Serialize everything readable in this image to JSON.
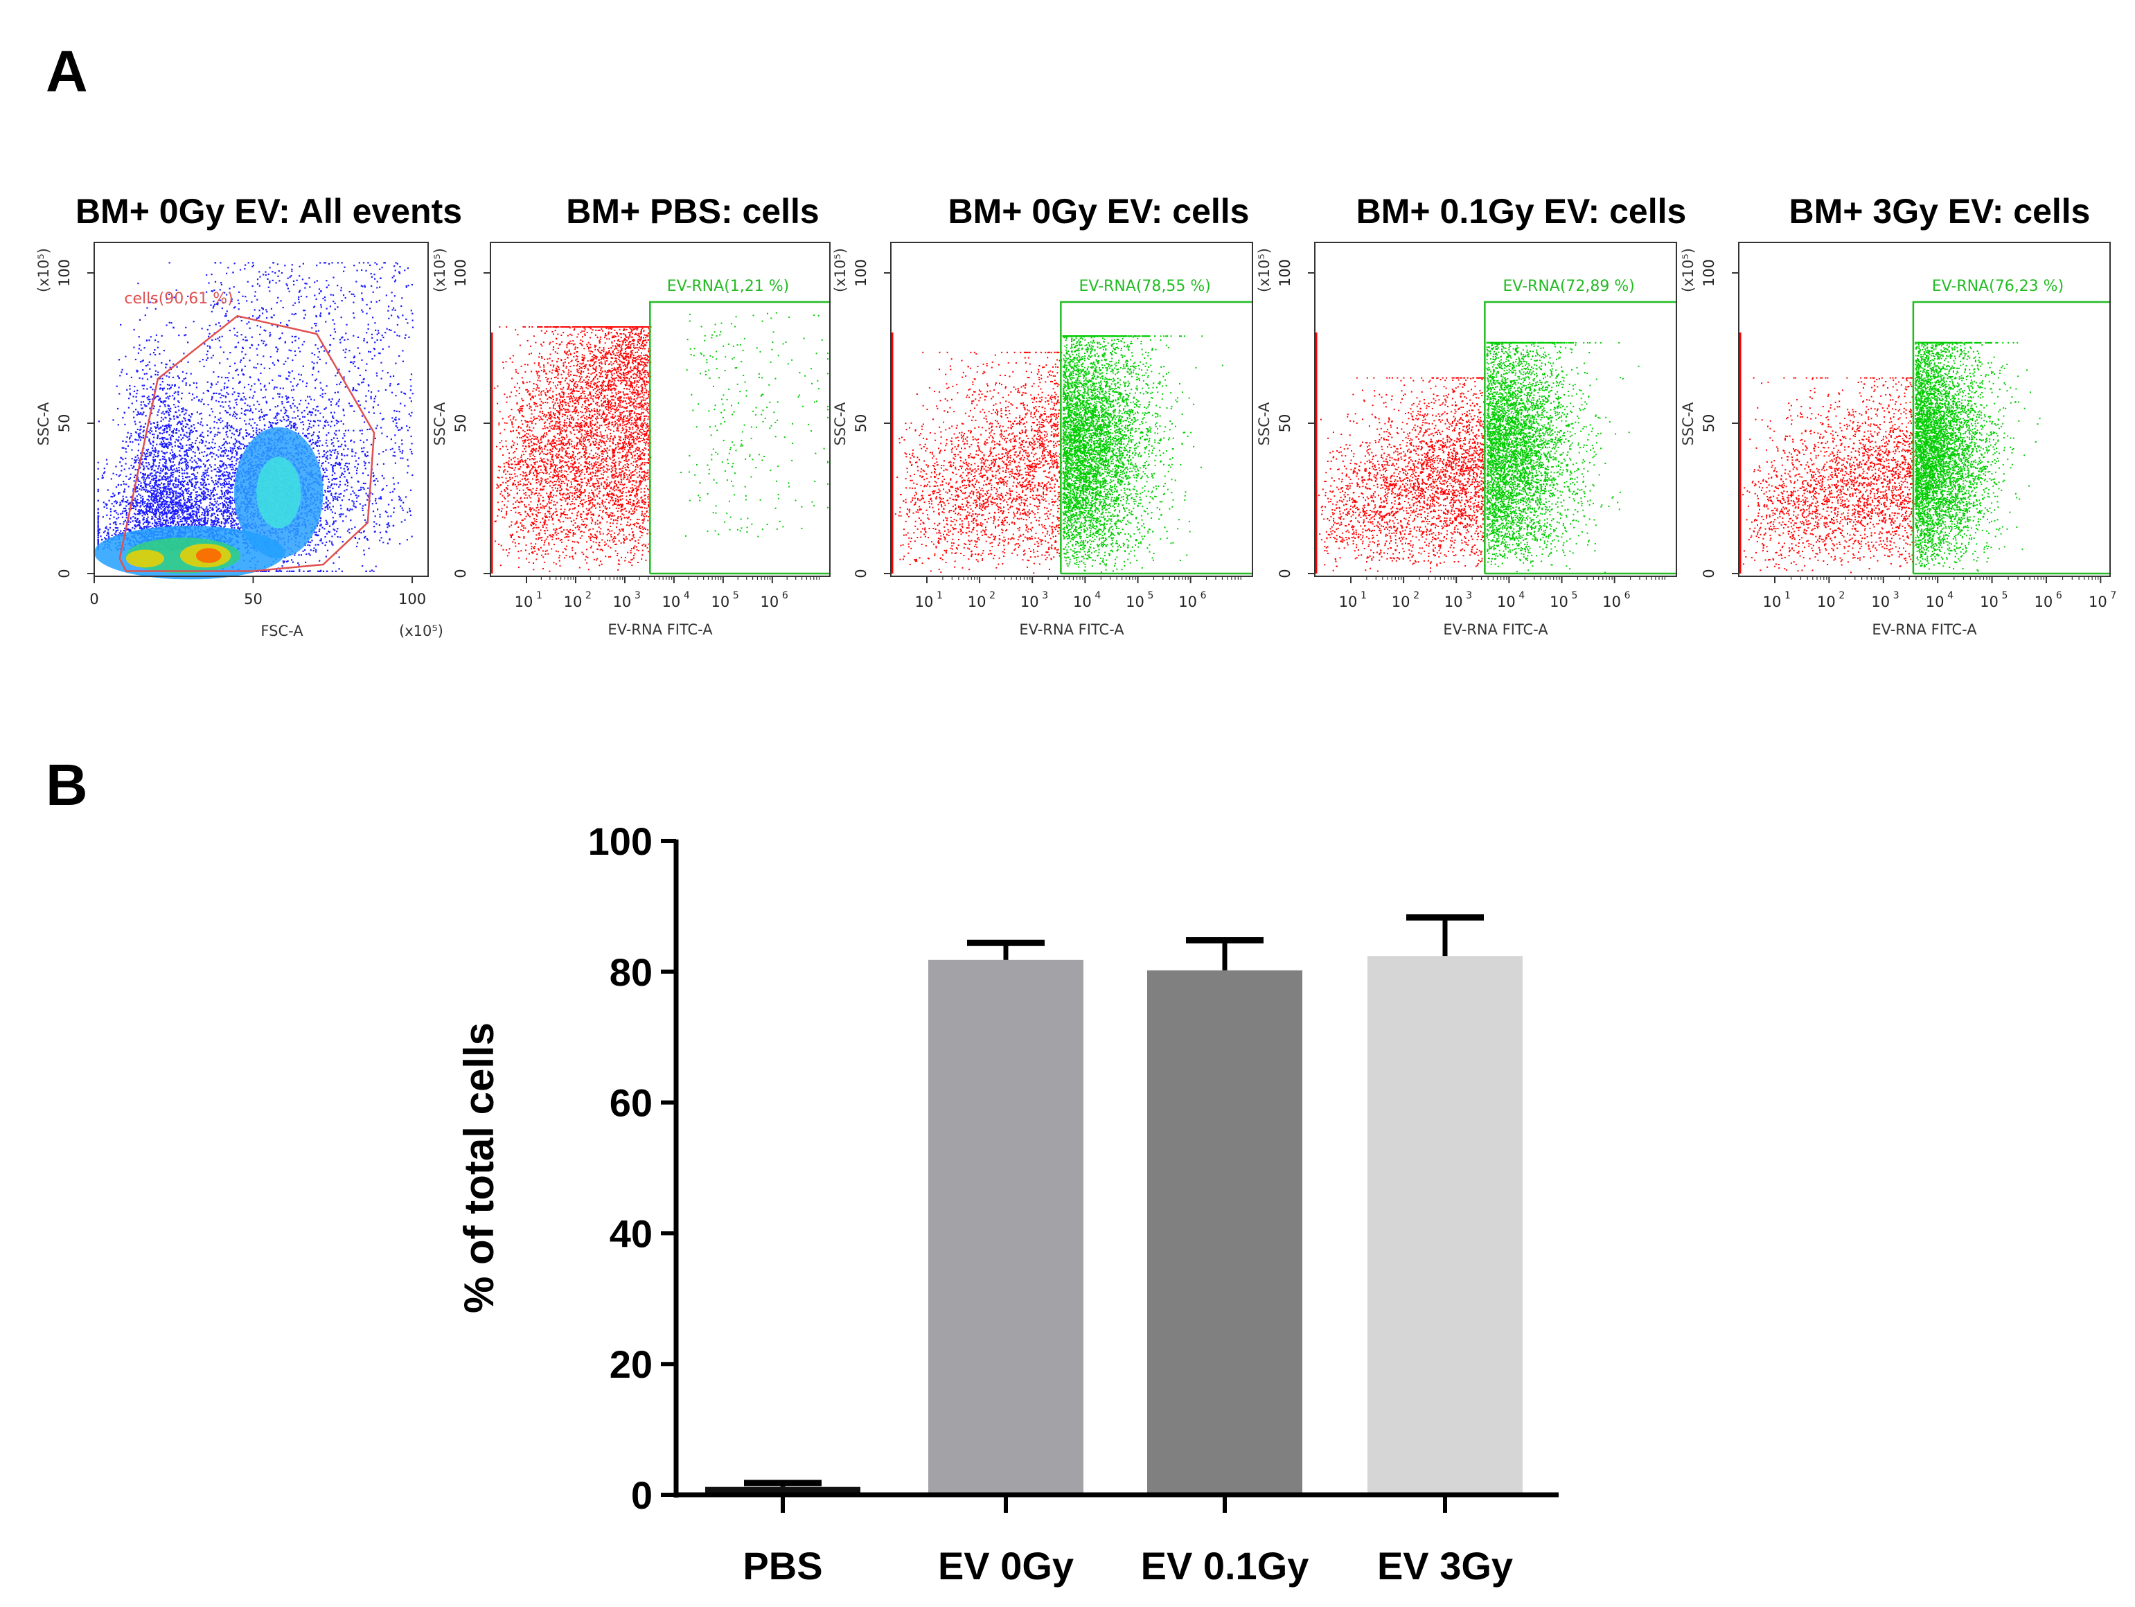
{
  "panel_a": {
    "letter": "A",
    "plots": [
      {
        "title": "BM+ 0Gy EV: All events",
        "kind": "fsc_ssc",
        "y_label": "SSC-A",
        "x_label": "FSC-A",
        "y_exp": "(x10⁵)",
        "x_exp": "(x10⁵)",
        "y_ticks": [
          "0",
          "50",
          "100"
        ],
        "x_ticks": [
          "0",
          "50",
          "100"
        ],
        "gate_label": "cells(90,61 %)"
      },
      {
        "title": "BM+ PBS: cells",
        "kind": "fitc",
        "y_label": "SSC-A",
        "x_label": "EV-RNA FITC-A",
        "y_exp": "(x10⁵)",
        "y_ticks": [
          "0",
          "50",
          "100"
        ],
        "x_ticks": [
          "10",
          "10",
          "10",
          "10",
          "10",
          "10"
        ],
        "x_tick_exps": [
          "1",
          "2",
          "3",
          "4",
          "5",
          "6"
        ],
        "gate_label": "EV-RNA(1,21 %)"
      },
      {
        "title": "BM+ 0Gy EV: cells",
        "kind": "fitc",
        "y_label": "SSC-A",
        "x_label": "EV-RNA FITC-A",
        "y_exp": "(x10⁵)",
        "y_ticks": [
          "0",
          "50",
          "100"
        ],
        "x_ticks": [
          "10",
          "10",
          "10",
          "10",
          "10",
          "10"
        ],
        "x_tick_exps": [
          "1",
          "2",
          "3",
          "4",
          "5",
          "6"
        ],
        "gate_label": "EV-RNA(78,55 %)"
      },
      {
        "title": "BM+ 0.1Gy EV: cells",
        "kind": "fitc",
        "y_label": "SSC-A",
        "x_label": "EV-RNA FITC-A",
        "y_exp": "(x10⁵)",
        "y_ticks": [
          "0",
          "50",
          "100"
        ],
        "x_ticks": [
          "10",
          "10",
          "10",
          "10",
          "10",
          "10"
        ],
        "x_tick_exps": [
          "1",
          "2",
          "3",
          "4",
          "5",
          "6"
        ],
        "gate_label": "EV-RNA(72,89 %)"
      },
      {
        "title": "BM+ 3Gy EV: cells",
        "kind": "fitc",
        "y_label": "SSC-A",
        "x_label": "EV-RNA FITC-A",
        "y_exp": "(x10⁵)",
        "y_ticks": [
          "0",
          "50",
          "100"
        ],
        "x_ticks": [
          "10",
          "10",
          "10",
          "10",
          "10",
          "10",
          "10"
        ],
        "x_tick_exps": [
          "1",
          "2",
          "3",
          "4",
          "5",
          "6",
          "7"
        ],
        "gate_label": "EV-RNA(76,23 %)"
      }
    ]
  },
  "panel_b": {
    "letter": "B"
  },
  "colors": {
    "negative_events": "#ff0000",
    "positive_events": "#00cc00",
    "gate_cells": "#e05050",
    "gate_positive": "#22bb22",
    "dense_blue": "#1a1aff",
    "bar_pbs": "#111111",
    "bar_ev0": "#a3a3a7",
    "bar_ev01": "#808080",
    "bar_ev3": "#d6d6d6"
  },
  "chart_data": [
    {
      "type": "scatter",
      "title": "BM+ 0Gy EV: All events",
      "xlabel": "FSC-A",
      "ylabel": "SSC-A",
      "xlim": [
        0,
        105
      ],
      "ylim": [
        0,
        105
      ],
      "units": "x10^5",
      "gates": [
        {
          "name": "cells",
          "percent": 90.61
        }
      ]
    },
    {
      "type": "scatter",
      "title": "BM+ PBS: cells",
      "xlabel": "EV-RNA FITC-A",
      "ylabel": "SSC-A",
      "x_scale": "log",
      "ylim": [
        0,
        105
      ],
      "gates": [
        {
          "name": "EV-RNA",
          "percent": 1.21
        }
      ]
    },
    {
      "type": "scatter",
      "title": "BM+ 0Gy EV: cells",
      "xlabel": "EV-RNA FITC-A",
      "ylabel": "SSC-A",
      "x_scale": "log",
      "ylim": [
        0,
        105
      ],
      "gates": [
        {
          "name": "EV-RNA",
          "percent": 78.55
        }
      ]
    },
    {
      "type": "scatter",
      "title": "BM+ 0.1Gy EV: cells",
      "xlabel": "EV-RNA FITC-A",
      "ylabel": "SSC-A",
      "x_scale": "log",
      "ylim": [
        0,
        105
      ],
      "gates": [
        {
          "name": "EV-RNA",
          "percent": 72.89
        }
      ]
    },
    {
      "type": "scatter",
      "title": "BM+ 3Gy EV: cells",
      "xlabel": "EV-RNA FITC-A",
      "ylabel": "SSC-A",
      "x_scale": "log",
      "ylim": [
        0,
        105
      ],
      "gates": [
        {
          "name": "EV-RNA",
          "percent": 76.23
        }
      ]
    },
    {
      "type": "bar",
      "title": "",
      "categories": [
        "PBS",
        "EV 0Gy",
        "EV 0.1Gy",
        "EV 3Gy"
      ],
      "values": [
        1.2,
        81.8,
        80.2,
        82.4
      ],
      "errors": [
        0.6,
        2.6,
        4.6,
        5.9
      ],
      "xlabel": "",
      "ylabel": "% of total cells",
      "ylim": [
        0,
        100
      ],
      "yticks": [
        0,
        20,
        40,
        60,
        80,
        100
      ],
      "grid": false
    }
  ]
}
